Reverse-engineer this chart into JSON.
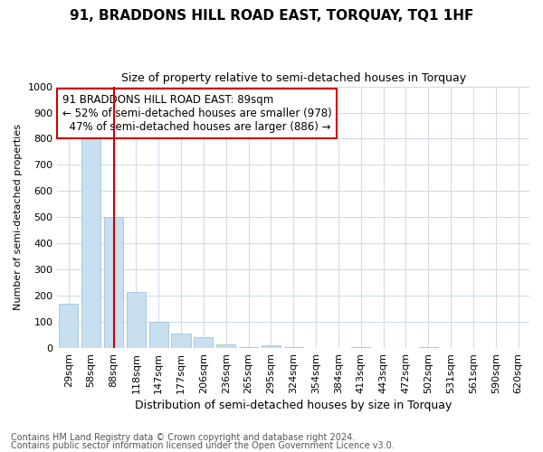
{
  "title": "91, BRADDONS HILL ROAD EAST, TORQUAY, TQ1 1HF",
  "subtitle": "Size of property relative to semi-detached houses in Torquay",
  "xlabel": "Distribution of semi-detached houses by size in Torquay",
  "ylabel": "Number of semi-detached properties",
  "footnote1": "Contains HM Land Registry data © Crown copyright and database right 2024.",
  "footnote2": "Contains public sector information licensed under the Open Government Licence v3.0.",
  "categories": [
    "29sqm",
    "58sqm",
    "88sqm",
    "118sqm",
    "147sqm",
    "177sqm",
    "206sqm",
    "236sqm",
    "265sqm",
    "295sqm",
    "324sqm",
    "354sqm",
    "384sqm",
    "413sqm",
    "443sqm",
    "472sqm",
    "502sqm",
    "531sqm",
    "561sqm",
    "590sqm",
    "620sqm"
  ],
  "values": [
    170,
    800,
    500,
    215,
    100,
    55,
    40,
    15,
    5,
    10,
    5,
    0,
    0,
    5,
    0,
    0,
    5,
    0,
    0,
    0,
    0
  ],
  "bar_color": "#c8dff0",
  "bar_edgecolor": "#a8c8e0",
  "highlight_index": 2,
  "highlight_line_color": "#cc0000",
  "annotation_text": "91 BRADDONS HILL ROAD EAST: 89sqm\n← 52% of semi-detached houses are smaller (978)\n  47% of semi-detached houses are larger (886) →",
  "annotation_box_color": "#cc0000",
  "ylim": [
    0,
    1000
  ],
  "title_fontsize": 11,
  "subtitle_fontsize": 9,
  "xlabel_fontsize": 9,
  "ylabel_fontsize": 8,
  "tick_fontsize": 8,
  "annotation_fontsize": 8.5,
  "footnote_fontsize": 7,
  "bg_color": "#ffffff",
  "plot_bg_color": "#ffffff",
  "grid_color": "#d0dce8"
}
